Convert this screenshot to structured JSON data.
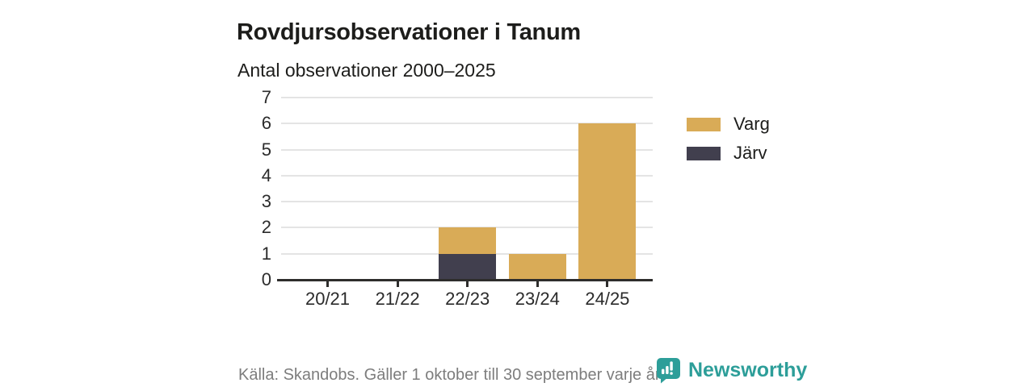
{
  "title": "Rovdjursobservationer i Tanum",
  "subtitle": "Antal observationer 2000–2025",
  "legend": [
    {
      "label": "Varg",
      "color": "#d9ab57"
    },
    {
      "label": "Järv",
      "color": "#413f4e"
    }
  ],
  "footer": {
    "source": "Källa: Skandobs. Gäller 1 oktober till 30 september varje år.",
    "brand": "Newsworthy"
  },
  "colors": {
    "varg": "#d9ab57",
    "jarv": "#413f4e",
    "brand_teal": "#2d9e99",
    "gridline": "#e4e4e4",
    "axis": "#2e2d2c",
    "text": "#1d1d1b",
    "muted_text": "#7d7d7d"
  },
  "chart_data": {
    "type": "bar",
    "stacked": true,
    "title": "Rovdjursobservationer i Tanum",
    "subtitle": "Antal observationer 2000–2025",
    "categories": [
      "20/21",
      "21/22",
      "22/23",
      "23/24",
      "24/25"
    ],
    "series": [
      {
        "name": "Järv",
        "color": "#413f4e",
        "values": [
          0,
          0,
          1,
          0,
          0
        ]
      },
      {
        "name": "Varg",
        "color": "#d9ab57",
        "values": [
          0,
          0,
          1,
          1,
          6
        ]
      }
    ],
    "totals": [
      0,
      0,
      2,
      1,
      6
    ],
    "ylim": [
      0,
      7
    ],
    "yticks": [
      0,
      1,
      2,
      3,
      4,
      5,
      6,
      7
    ],
    "grid": true,
    "legend_position": "right",
    "source": "Källa: Skandobs. Gäller 1 oktober till 30 september varje år."
  }
}
